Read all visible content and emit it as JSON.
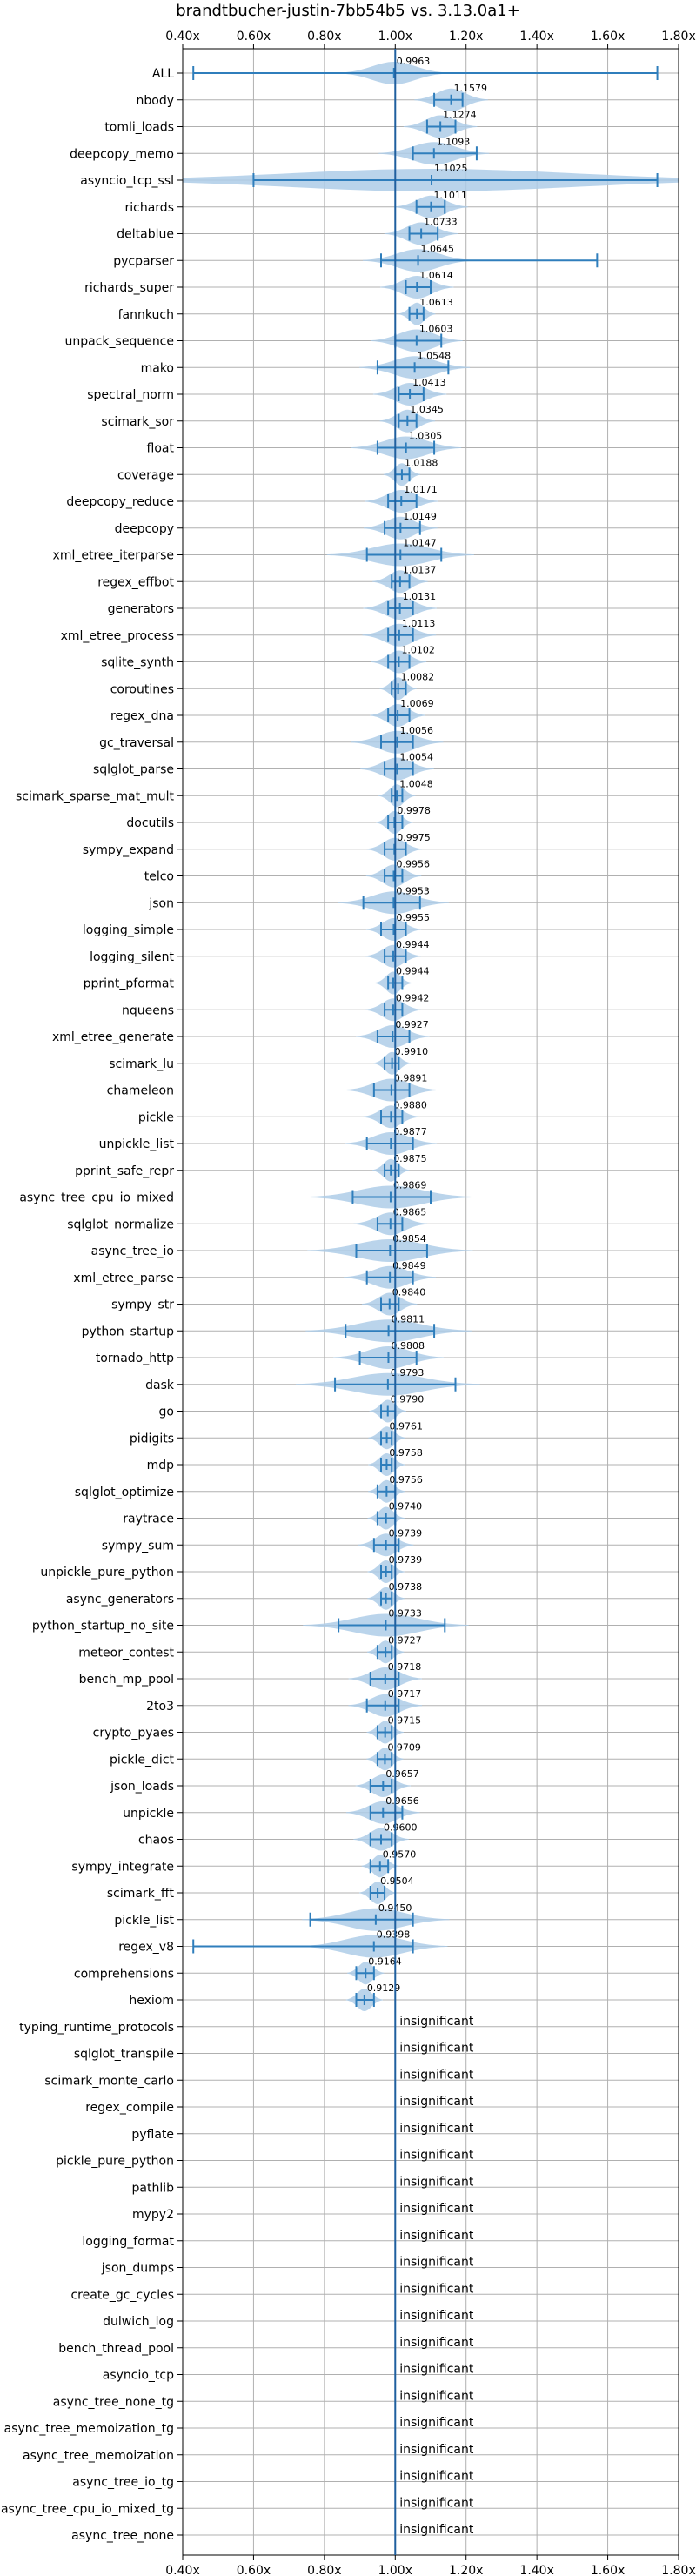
{
  "chart_data": {
    "type": "violin",
    "title": "brandtbucher-justin-7bb54b5 vs. 3.13.0a1+",
    "xlim": [
      0.4,
      1.8
    ],
    "xticks": [
      0.4,
      0.6,
      0.8,
      1.0,
      1.2,
      1.4,
      1.6,
      1.8
    ],
    "xtick_labels": [
      "0.40x",
      "0.60x",
      "0.80x",
      "1.00x",
      "1.20x",
      "1.40x",
      "1.60x",
      "1.80x"
    ],
    "reference_line": 1.0,
    "grid": true,
    "colors": {
      "violin": "#aecde8",
      "whisker": "#2f7ebc",
      "axis": "#000000",
      "grid": "#b0b0b0",
      "reference": "#1f5f9f"
    },
    "insignificant_label": "insignificant",
    "benchmarks": [
      {
        "name": "ALL",
        "mean": 0.9963,
        "label": "0.9963",
        "min": 0.43,
        "max": 1.74,
        "spread": 0.06
      },
      {
        "name": "nbody",
        "mean": 1.1579,
        "label": "1.1579",
        "min": 1.11,
        "max": 1.19,
        "spread": 0.04
      },
      {
        "name": "tomli_loads",
        "mean": 1.1274,
        "label": "1.1274",
        "min": 1.09,
        "max": 1.17,
        "spread": 0.04
      },
      {
        "name": "deepcopy_memo",
        "mean": 1.1093,
        "label": "1.1093",
        "min": 1.05,
        "max": 1.23,
        "spread": 0.06
      },
      {
        "name": "asyncio_tcp_ssl",
        "mean": 1.1025,
        "label": "1.1025",
        "min": 0.6,
        "max": 1.74,
        "spread": 0.4
      },
      {
        "name": "richards",
        "mean": 1.1011,
        "label": "1.1011",
        "min": 1.06,
        "max": 1.14,
        "spread": 0.04
      },
      {
        "name": "deltablue",
        "mean": 1.0733,
        "label": "1.0733",
        "min": 1.04,
        "max": 1.12,
        "spread": 0.04
      },
      {
        "name": "pycparser",
        "mean": 1.0645,
        "label": "1.0645",
        "min": 0.96,
        "max": 1.57,
        "spread": 0.06
      },
      {
        "name": "richards_super",
        "mean": 1.0614,
        "label": "1.0614",
        "min": 1.03,
        "max": 1.1,
        "spread": 0.04
      },
      {
        "name": "fannkuch",
        "mean": 1.0613,
        "label": "1.0613",
        "min": 1.04,
        "max": 1.08,
        "spread": 0.02
      },
      {
        "name": "unpack_sequence",
        "mean": 1.0603,
        "label": "1.0603",
        "min": 1.0,
        "max": 1.13,
        "spread": 0.05
      },
      {
        "name": "mako",
        "mean": 1.0548,
        "label": "1.0548",
        "min": 0.95,
        "max": 1.15,
        "spread": 0.06
      },
      {
        "name": "spectral_norm",
        "mean": 1.0413,
        "label": "1.0413",
        "min": 1.01,
        "max": 1.08,
        "spread": 0.04
      },
      {
        "name": "scimark_sor",
        "mean": 1.0345,
        "label": "1.0345",
        "min": 1.01,
        "max": 1.06,
        "spread": 0.03
      },
      {
        "name": "float",
        "mean": 1.0305,
        "label": "1.0305",
        "min": 0.95,
        "max": 1.11,
        "spread": 0.06
      },
      {
        "name": "coverage",
        "mean": 1.0188,
        "label": "1.0188",
        "min": 1.0,
        "max": 1.04,
        "spread": 0.02
      },
      {
        "name": "deepcopy_reduce",
        "mean": 1.0171,
        "label": "1.0171",
        "min": 0.98,
        "max": 1.06,
        "spread": 0.04
      },
      {
        "name": "deepcopy",
        "mean": 1.0149,
        "label": "1.0149",
        "min": 0.97,
        "max": 1.07,
        "spread": 0.04
      },
      {
        "name": "xml_etree_iterparse",
        "mean": 1.0147,
        "label": "1.0147",
        "min": 0.92,
        "max": 1.13,
        "spread": 0.08
      },
      {
        "name": "regex_effbot",
        "mean": 1.0137,
        "label": "1.0137",
        "min": 0.99,
        "max": 1.04,
        "spread": 0.03
      },
      {
        "name": "generators",
        "mean": 1.0131,
        "label": "1.0131",
        "min": 0.98,
        "max": 1.05,
        "spread": 0.04
      },
      {
        "name": "xml_etree_process",
        "mean": 1.0113,
        "label": "1.0113",
        "min": 0.98,
        "max": 1.05,
        "spread": 0.04
      },
      {
        "name": "sqlite_synth",
        "mean": 1.0102,
        "label": "1.0102",
        "min": 0.98,
        "max": 1.04,
        "spread": 0.03
      },
      {
        "name": "coroutines",
        "mean": 1.0082,
        "label": "1.0082",
        "min": 0.99,
        "max": 1.03,
        "spread": 0.02
      },
      {
        "name": "regex_dna",
        "mean": 1.0069,
        "label": "1.0069",
        "min": 0.98,
        "max": 1.04,
        "spread": 0.03
      },
      {
        "name": "gc_traversal",
        "mean": 1.0056,
        "label": "1.0056",
        "min": 0.96,
        "max": 1.05,
        "spread": 0.05
      },
      {
        "name": "sqlglot_parse",
        "mean": 1.0054,
        "label": "1.0054",
        "min": 0.97,
        "max": 1.05,
        "spread": 0.04
      },
      {
        "name": "scimark_sparse_mat_mult",
        "mean": 1.0048,
        "label": "1.0048",
        "min": 0.99,
        "max": 1.02,
        "spread": 0.02
      },
      {
        "name": "docutils",
        "mean": 0.9978,
        "label": "0.9978",
        "min": 0.98,
        "max": 1.02,
        "spread": 0.02
      },
      {
        "name": "sympy_expand",
        "mean": 0.9975,
        "label": "0.9975",
        "min": 0.97,
        "max": 1.03,
        "spread": 0.03
      },
      {
        "name": "telco",
        "mean": 0.9956,
        "label": "0.9956",
        "min": 0.97,
        "max": 1.02,
        "spread": 0.03
      },
      {
        "name": "json",
        "mean": 0.9953,
        "label": "0.9953",
        "min": 0.91,
        "max": 1.07,
        "spread": 0.06
      },
      {
        "name": "logging_simple",
        "mean": 0.9955,
        "label": "0.9955",
        "min": 0.96,
        "max": 1.03,
        "spread": 0.03
      },
      {
        "name": "logging_silent",
        "mean": 0.9944,
        "label": "0.9944",
        "min": 0.97,
        "max": 1.03,
        "spread": 0.03
      },
      {
        "name": "pprint_pformat",
        "mean": 0.9944,
        "label": "0.9944",
        "min": 0.98,
        "max": 1.02,
        "spread": 0.02
      },
      {
        "name": "nqueens",
        "mean": 0.9942,
        "label": "0.9942",
        "min": 0.97,
        "max": 1.02,
        "spread": 0.03
      },
      {
        "name": "xml_etree_generate",
        "mean": 0.9927,
        "label": "0.9927",
        "min": 0.95,
        "max": 1.04,
        "spread": 0.04
      },
      {
        "name": "scimark_lu",
        "mean": 0.991,
        "label": "0.9910",
        "min": 0.97,
        "max": 1.01,
        "spread": 0.02
      },
      {
        "name": "chameleon",
        "mean": 0.9891,
        "label": "0.9891",
        "min": 0.94,
        "max": 1.04,
        "spread": 0.05
      },
      {
        "name": "pickle",
        "mean": 0.988,
        "label": "0.9880",
        "min": 0.96,
        "max": 1.02,
        "spread": 0.03
      },
      {
        "name": "unpickle_list",
        "mean": 0.9877,
        "label": "0.9877",
        "min": 0.92,
        "max": 1.05,
        "spread": 0.05
      },
      {
        "name": "pprint_safe_repr",
        "mean": 0.9875,
        "label": "0.9875",
        "min": 0.97,
        "max": 1.01,
        "spread": 0.02
      },
      {
        "name": "async_tree_cpu_io_mixed",
        "mean": 0.9869,
        "label": "0.9869",
        "min": 0.88,
        "max": 1.1,
        "spread": 0.09
      },
      {
        "name": "sqlglot_normalize",
        "mean": 0.9865,
        "label": "0.9865",
        "min": 0.95,
        "max": 1.02,
        "spread": 0.04
      },
      {
        "name": "async_tree_io",
        "mean": 0.9854,
        "label": "0.9854",
        "min": 0.89,
        "max": 1.09,
        "spread": 0.09
      },
      {
        "name": "xml_etree_parse",
        "mean": 0.9849,
        "label": "0.9849",
        "min": 0.92,
        "max": 1.05,
        "spread": 0.05
      },
      {
        "name": "sympy_str",
        "mean": 0.984,
        "label": "0.9840",
        "min": 0.96,
        "max": 1.01,
        "spread": 0.03
      },
      {
        "name": "python_startup",
        "mean": 0.9811,
        "label": "0.9811",
        "min": 0.86,
        "max": 1.11,
        "spread": 0.09
      },
      {
        "name": "tornado_http",
        "mean": 0.9808,
        "label": "0.9808",
        "min": 0.9,
        "max": 1.06,
        "spread": 0.06
      },
      {
        "name": "dask",
        "mean": 0.9793,
        "label": "0.9793",
        "min": 0.83,
        "max": 1.17,
        "spread": 0.1
      },
      {
        "name": "go",
        "mean": 0.979,
        "label": "0.9790",
        "min": 0.96,
        "max": 1.0,
        "spread": 0.02
      },
      {
        "name": "pidigits",
        "mean": 0.9761,
        "label": "0.9761",
        "min": 0.96,
        "max": 0.99,
        "spread": 0.02
      },
      {
        "name": "mdp",
        "mean": 0.9758,
        "label": "0.9758",
        "min": 0.96,
        "max": 0.99,
        "spread": 0.02
      },
      {
        "name": "sqlglot_optimize",
        "mean": 0.9756,
        "label": "0.9756",
        "min": 0.95,
        "max": 1.0,
        "spread": 0.02
      },
      {
        "name": "raytrace",
        "mean": 0.974,
        "label": "0.9740",
        "min": 0.95,
        "max": 1.0,
        "spread": 0.02
      },
      {
        "name": "sympy_sum",
        "mean": 0.9739,
        "label": "0.9739",
        "min": 0.94,
        "max": 1.01,
        "spread": 0.03
      },
      {
        "name": "unpickle_pure_python",
        "mean": 0.9739,
        "label": "0.9739",
        "min": 0.96,
        "max": 0.99,
        "spread": 0.02
      },
      {
        "name": "async_generators",
        "mean": 0.9738,
        "label": "0.9738",
        "min": 0.96,
        "max": 0.99,
        "spread": 0.02
      },
      {
        "name": "python_startup_no_site",
        "mean": 0.9733,
        "label": "0.9733",
        "min": 0.84,
        "max": 1.14,
        "spread": 0.09
      },
      {
        "name": "meteor_contest",
        "mean": 0.9727,
        "label": "0.9727",
        "min": 0.95,
        "max": 0.99,
        "spread": 0.02
      },
      {
        "name": "bench_mp_pool",
        "mean": 0.9718,
        "label": "0.9718",
        "min": 0.93,
        "max": 1.01,
        "spread": 0.04
      },
      {
        "name": "2to3",
        "mean": 0.9717,
        "label": "0.9717",
        "min": 0.92,
        "max": 1.01,
        "spread": 0.04
      },
      {
        "name": "crypto_pyaes",
        "mean": 0.9715,
        "label": "0.9715",
        "min": 0.95,
        "max": 0.99,
        "spread": 0.02
      },
      {
        "name": "pickle_dict",
        "mean": 0.9709,
        "label": "0.9709",
        "min": 0.95,
        "max": 0.99,
        "spread": 0.02
      },
      {
        "name": "json_loads",
        "mean": 0.9657,
        "label": "0.9657",
        "min": 0.93,
        "max": 0.99,
        "spread": 0.03
      },
      {
        "name": "unpickle",
        "mean": 0.9656,
        "label": "0.9656",
        "min": 0.93,
        "max": 1.02,
        "spread": 0.04
      },
      {
        "name": "chaos",
        "mean": 0.96,
        "label": "0.9600",
        "min": 0.93,
        "max": 0.99,
        "spread": 0.03
      },
      {
        "name": "sympy_integrate",
        "mean": 0.957,
        "label": "0.9570",
        "min": 0.93,
        "max": 0.98,
        "spread": 0.02
      },
      {
        "name": "scimark_fft",
        "mean": 0.9504,
        "label": "0.9504",
        "min": 0.93,
        "max": 0.97,
        "spread": 0.02
      },
      {
        "name": "pickle_list",
        "mean": 0.945,
        "label": "0.9450",
        "min": 0.76,
        "max": 1.05,
        "spread": 0.08
      },
      {
        "name": "regex_v8",
        "mean": 0.9398,
        "label": "0.9398",
        "min": 0.43,
        "max": 1.05,
        "spread": 0.08
      },
      {
        "name": "comprehensions",
        "mean": 0.9164,
        "label": "0.9164",
        "min": 0.89,
        "max": 0.94,
        "spread": 0.02
      },
      {
        "name": "hexiom",
        "mean": 0.9129,
        "label": "0.9129",
        "min": 0.89,
        "max": 0.94,
        "spread": 0.02
      },
      {
        "name": "typing_runtime_protocols",
        "mean": null,
        "label": "insignificant"
      },
      {
        "name": "sqlglot_transpile",
        "mean": null,
        "label": "insignificant"
      },
      {
        "name": "scimark_monte_carlo",
        "mean": null,
        "label": "insignificant"
      },
      {
        "name": "regex_compile",
        "mean": null,
        "label": "insignificant"
      },
      {
        "name": "pyflate",
        "mean": null,
        "label": "insignificant"
      },
      {
        "name": "pickle_pure_python",
        "mean": null,
        "label": "insignificant"
      },
      {
        "name": "pathlib",
        "mean": null,
        "label": "insignificant"
      },
      {
        "name": "mypy2",
        "mean": null,
        "label": "insignificant"
      },
      {
        "name": "logging_format",
        "mean": null,
        "label": "insignificant"
      },
      {
        "name": "json_dumps",
        "mean": null,
        "label": "insignificant"
      },
      {
        "name": "create_gc_cycles",
        "mean": null,
        "label": "insignificant"
      },
      {
        "name": "dulwich_log",
        "mean": null,
        "label": "insignificant"
      },
      {
        "name": "bench_thread_pool",
        "mean": null,
        "label": "insignificant"
      },
      {
        "name": "asyncio_tcp",
        "mean": null,
        "label": "insignificant"
      },
      {
        "name": "async_tree_none_tg",
        "mean": null,
        "label": "insignificant"
      },
      {
        "name": "async_tree_memoization_tg",
        "mean": null,
        "label": "insignificant"
      },
      {
        "name": "async_tree_memoization",
        "mean": null,
        "label": "insignificant"
      },
      {
        "name": "async_tree_io_tg",
        "mean": null,
        "label": "insignificant"
      },
      {
        "name": "async_tree_cpu_io_mixed_tg",
        "mean": null,
        "label": "insignificant"
      },
      {
        "name": "async_tree_none",
        "mean": null,
        "label": "insignificant"
      }
    ]
  }
}
